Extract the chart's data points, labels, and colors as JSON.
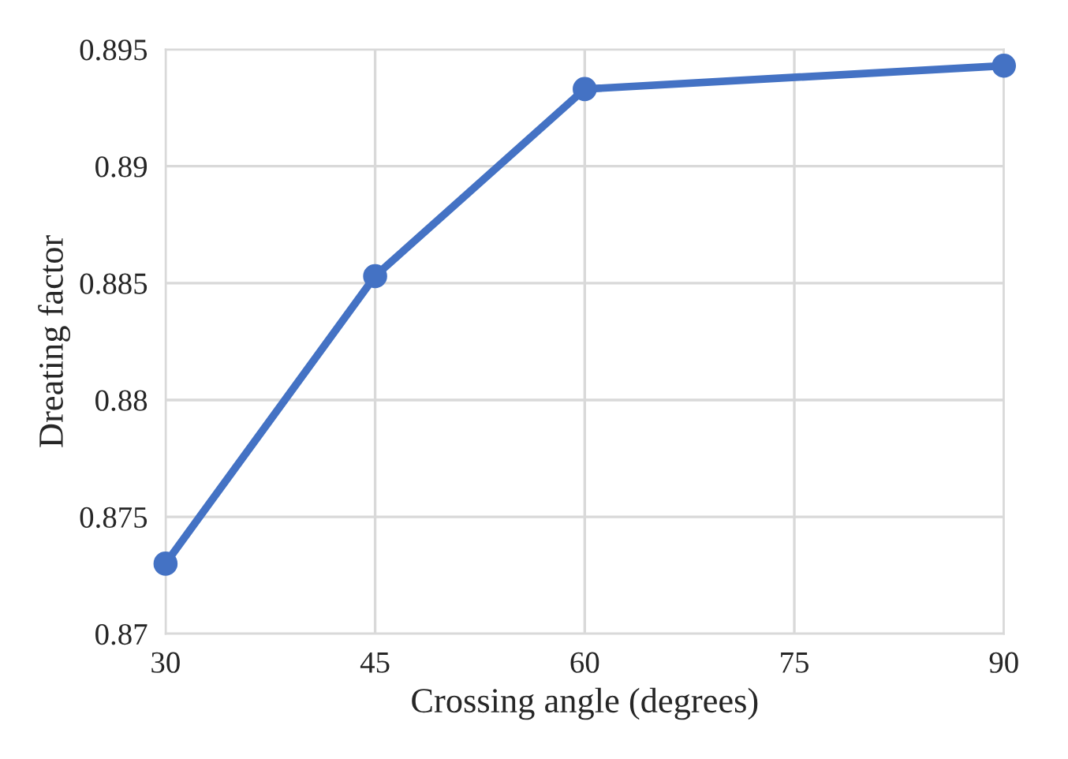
{
  "chart_data": {
    "type": "line",
    "xlabel": "Crossing angle (degrees)",
    "ylabel": "Dreating factor",
    "x": [
      30,
      45,
      60,
      90
    ],
    "series": [
      {
        "color": "#4472c4",
        "values": [
          0.873,
          0.8853,
          0.8933,
          0.8943
        ]
      }
    ],
    "xlim": [
      30,
      90
    ],
    "xticks": [
      30,
      45,
      60,
      75,
      90
    ],
    "ylim": [
      0.87,
      0.895
    ],
    "yticks": [
      0.87,
      0.875,
      0.88,
      0.885,
      0.89,
      0.895
    ],
    "grid": true,
    "marker": "circle",
    "line_style": "solid"
  }
}
